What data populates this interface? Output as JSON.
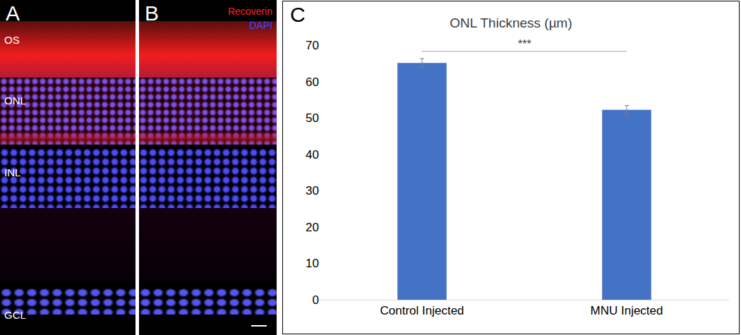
{
  "panels": [
    {
      "label": "A",
      "layers": [
        "OS",
        "ONL",
        "INL",
        "GCL"
      ]
    },
    {
      "label": "B",
      "stains": [
        {
          "text": "Recoverin",
          "color": "#ff2020"
        },
        {
          "text": "DAPI",
          "color": "#3a4cff"
        }
      ]
    }
  ],
  "chart_label": "C",
  "chart_data": {
    "type": "bar",
    "title": "ONL Thickness (µm)",
    "categories": [
      "Control Injected",
      "MNU Injected"
    ],
    "values": [
      65.1,
      52.2
    ],
    "errors": [
      1.2,
      1.2
    ],
    "color": "#4472c4",
    "ylim": [
      0,
      70
    ],
    "yticks": [
      0,
      10,
      20,
      30,
      40,
      50,
      60,
      70
    ],
    "grid": false,
    "annotations": [
      {
        "text": "***",
        "from": "Control Injected",
        "to": "MNU Injected",
        "y": 68.3
      }
    ]
  }
}
